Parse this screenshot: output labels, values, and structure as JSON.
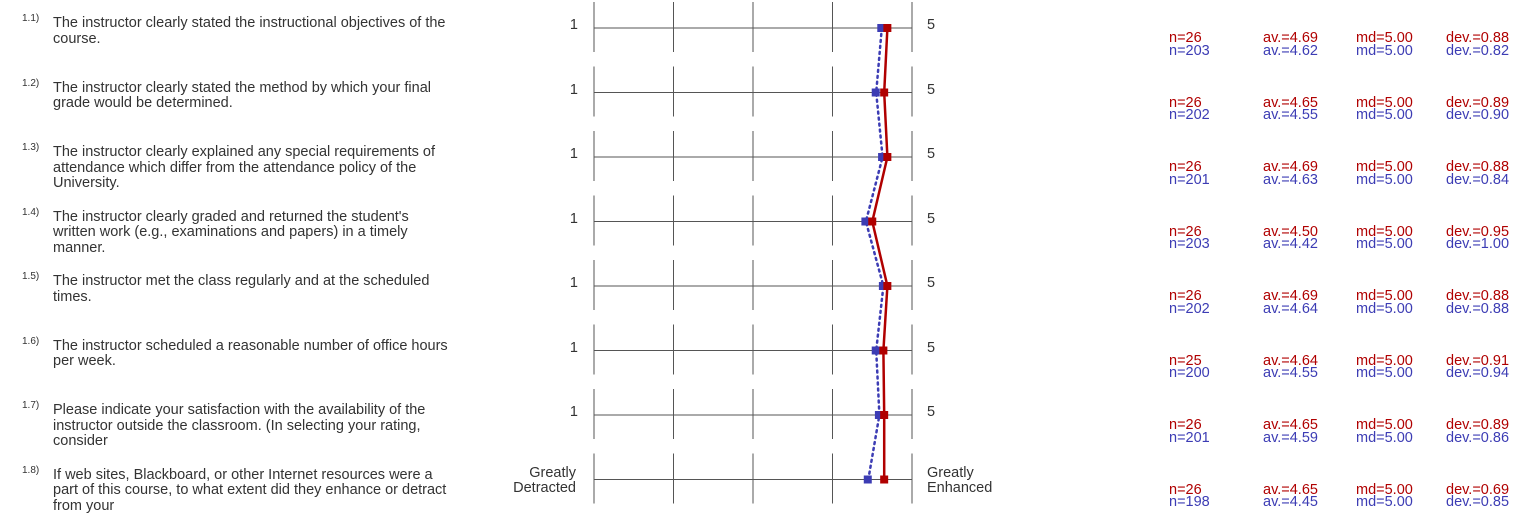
{
  "colors": {
    "course": "#b00000",
    "comparison": "#3c3cb4",
    "grid": "#555555",
    "text": "#333333"
  },
  "chart_data": {
    "type": "line",
    "scale": {
      "min": 1,
      "max": 5
    },
    "series": [
      {
        "key": "course",
        "style": "solid"
      },
      {
        "key": "comparison",
        "style": "dotted"
      }
    ],
    "questions": [
      {
        "num": "1.1)",
        "text": "The instructor clearly stated the instructional objectives of the course.",
        "left_label": "1",
        "right_label": "5",
        "course": {
          "n": "n=26",
          "av": "av.=4.69",
          "md": "md=5.00",
          "dev": "dev.=0.88",
          "value": 4.69
        },
        "comparison": {
          "n": "n=203",
          "av": "av.=4.62",
          "md": "md=5.00",
          "dev": "dev.=0.82",
          "value": 4.62
        }
      },
      {
        "num": "1.2)",
        "text": "The instructor clearly stated the method by which your final grade would be determined.",
        "left_label": "1",
        "right_label": "5",
        "course": {
          "n": "n=26",
          "av": "av.=4.65",
          "md": "md=5.00",
          "dev": "dev.=0.89",
          "value": 4.65
        },
        "comparison": {
          "n": "n=202",
          "av": "av.=4.55",
          "md": "md=5.00",
          "dev": "dev.=0.90",
          "value": 4.55
        }
      },
      {
        "num": "1.3)",
        "text": "The instructor clearly explained any special requirements of attendance which differ from the attendance policy of the University.",
        "left_label": "1",
        "right_label": "5",
        "course": {
          "n": "n=26",
          "av": "av.=4.69",
          "md": "md=5.00",
          "dev": "dev.=0.88",
          "value": 4.69
        },
        "comparison": {
          "n": "n=201",
          "av": "av.=4.63",
          "md": "md=5.00",
          "dev": "dev.=0.84",
          "value": 4.63
        }
      },
      {
        "num": "1.4)",
        "text": "The instructor clearly graded and returned the student's written work (e.g., examinations and papers) in a timely manner.",
        "left_label": "1",
        "right_label": "5",
        "course": {
          "n": "n=26",
          "av": "av.=4.50",
          "md": "md=5.00",
          "dev": "dev.=0.95",
          "value": 4.5
        },
        "comparison": {
          "n": "n=203",
          "av": "av.=4.42",
          "md": "md=5.00",
          "dev": "dev.=1.00",
          "value": 4.42
        }
      },
      {
        "num": "1.5)",
        "text": "The instructor met the class regularly and at the scheduled times.",
        "left_label": "1",
        "right_label": "5",
        "course": {
          "n": "n=26",
          "av": "av.=4.69",
          "md": "md=5.00",
          "dev": "dev.=0.88",
          "value": 4.69
        },
        "comparison": {
          "n": "n=202",
          "av": "av.=4.64",
          "md": "md=5.00",
          "dev": "dev.=0.88",
          "value": 4.64
        }
      },
      {
        "num": "1.6)",
        "text": "The instructor scheduled a reasonable number of office hours per week.",
        "left_label": "1",
        "right_label": "5",
        "course": {
          "n": "n=25",
          "av": "av.=4.64",
          "md": "md=5.00",
          "dev": "dev.=0.91",
          "value": 4.64
        },
        "comparison": {
          "n": "n=200",
          "av": "av.=4.55",
          "md": "md=5.00",
          "dev": "dev.=0.94",
          "value": 4.55
        }
      },
      {
        "num": "1.7)",
        "text": "Please indicate your satisfaction with the availability of the instructor outside the classroom. (In selecting your rating, consider",
        "left_label": "1",
        "right_label": "5",
        "course": {
          "n": "n=26",
          "av": "av.=4.65",
          "md": "md=5.00",
          "dev": "dev.=0.89",
          "value": 4.65
        },
        "comparison": {
          "n": "n=201",
          "av": "av.=4.59",
          "md": "md=5.00",
          "dev": "dev.=0.86",
          "value": 4.59
        }
      },
      {
        "num": "1.8)",
        "text": "If web sites, Blackboard, or other Internet resources were a part of this course, to what extent did they enhance or detract from your",
        "left_label": "Greatly Detracted",
        "right_label": "Greatly Enhanced",
        "course": {
          "n": "n=26",
          "av": "av.=4.65",
          "md": "md=5.00",
          "dev": "dev.=0.69",
          "value": 4.65
        },
        "comparison": {
          "n": "n=198",
          "av": "av.=4.45",
          "md": "md=5.00",
          "dev": "dev.=0.85",
          "value": 4.45
        }
      }
    ]
  }
}
